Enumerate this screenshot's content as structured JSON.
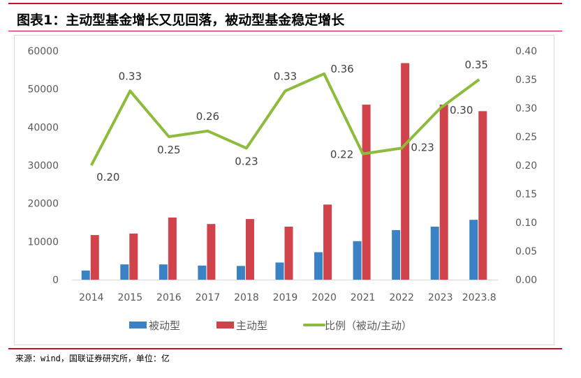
{
  "header": {
    "title": "图表1：主动型基金增长又见回落，被动型基金稳定增长"
  },
  "footer": {
    "source": "来源：wind，国联证券研究所，单位：亿"
  },
  "chart_data": {
    "type": "bar",
    "title": "图表1：主动型基金增长又见回落，被动型基金稳定增长",
    "categories": [
      "2014",
      "2015",
      "2016",
      "2017",
      "2018",
      "2019",
      "2020",
      "2021",
      "2022",
      "2023",
      "2023.8"
    ],
    "series": [
      {
        "name": "被动型",
        "type": "bar",
        "axis": "left",
        "color": "#3b82c4",
        "values": [
          2400,
          4000,
          4000,
          3700,
          3600,
          4500,
          7200,
          10100,
          13000,
          13900,
          15700
        ]
      },
      {
        "name": "主动型",
        "type": "bar",
        "axis": "left",
        "color": "#d0434a",
        "values": [
          11700,
          12100,
          16300,
          14600,
          15900,
          13900,
          19700,
          45900,
          56800,
          45900,
          44200
        ]
      },
      {
        "name": "比例（被动/主动）",
        "type": "line",
        "axis": "right",
        "color": "#8dbb3c",
        "values": [
          0.2,
          0.33,
          0.25,
          0.26,
          0.23,
          0.33,
          0.36,
          0.22,
          0.23,
          0.3,
          0.35
        ],
        "labels": [
          "0.20",
          "0.33",
          "0.25",
          "0.26",
          "0.23",
          "0.33",
          "0.36",
          "0.22",
          "0.23",
          "0.30",
          "0.35"
        ]
      }
    ],
    "ylim": [
      0,
      60000
    ],
    "y_ticks": [
      "0",
      "10000",
      "20000",
      "30000",
      "40000",
      "50000",
      "60000"
    ],
    "y2lim": [
      0,
      0.4
    ],
    "y2_ticks": [
      "0.00",
      "0.05",
      "0.10",
      "0.15",
      "0.20",
      "0.25",
      "0.30",
      "0.35",
      "0.40"
    ],
    "grid": false,
    "legend": "bottom"
  }
}
